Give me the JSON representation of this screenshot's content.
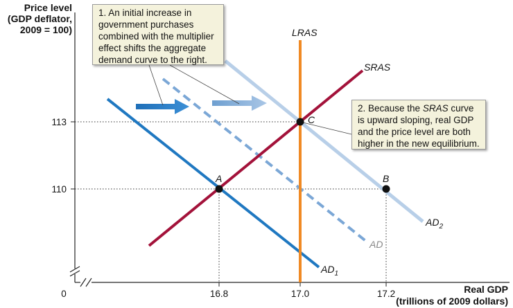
{
  "axes": {
    "y_title": [
      "Price level",
      "(GDP deflator,",
      "2009 = 100)"
    ],
    "x_title": [
      "Real GDP",
      "(trillions of 2009 dollars)"
    ],
    "origin_label": "0",
    "y_ticks": [
      "113",
      "110"
    ],
    "x_ticks": [
      "16.8",
      "17.0",
      "17.2"
    ]
  },
  "curves": {
    "lras": "LRAS",
    "sras": "SRAS",
    "ad": "AD",
    "ad1_base": "AD",
    "ad1_sub": "1",
    "ad2_base": "AD",
    "ad2_sub": "2"
  },
  "points": {
    "a": "A",
    "b": "B",
    "c": "C"
  },
  "notes": {
    "note1": "1. An initial increase in government purchases combined with the multiplier effect shifts the aggregate demand curve to the right.",
    "note2_pre": "2. Because the ",
    "note2_em": "SRAS",
    "note2_post": " curve is upward sloping, real GDP and the price level are both higher in the new equilibrium."
  },
  "colors": {
    "lras": "#f08a24",
    "sras": "#a3123a",
    "ad1": "#1f78c1",
    "ad": "#7ba7d6",
    "ad2": "#b8cfe8",
    "arrow1": "#1f6fb8",
    "arrow2": "#6e9fd0",
    "note_bg": "#f4f2dc"
  }
}
